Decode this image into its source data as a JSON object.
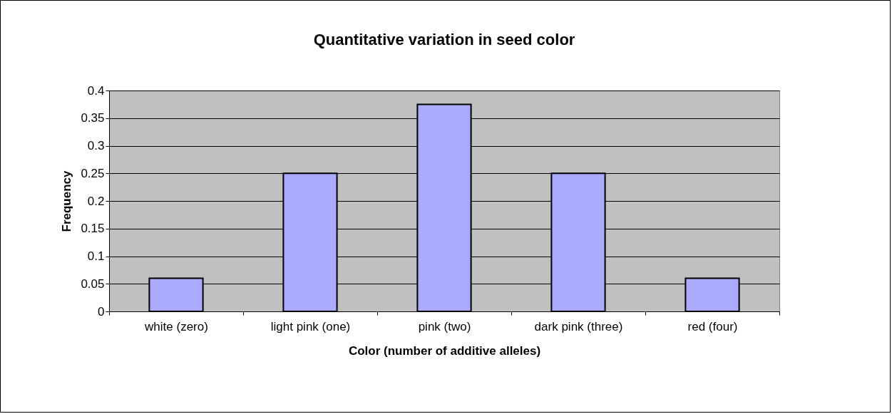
{
  "chart_data": {
    "type": "bar",
    "title": "Quantitative variation in seed color",
    "xlabel": "Color (number of additive alleles)",
    "ylabel": "Frequency",
    "categories": [
      "white (zero)",
      "light pink (one)",
      "pink (two)",
      "dark pink (three)",
      "red (four)"
    ],
    "values": [
      0.06,
      0.25,
      0.375,
      0.25,
      0.06
    ],
    "color": "#aaaaff",
    "ylim": [
      0,
      0.4
    ],
    "yticks": [
      0,
      0.05,
      0.1,
      0.15,
      0.2,
      0.25,
      0.3,
      0.35,
      0.4
    ],
    "grid": "y"
  }
}
